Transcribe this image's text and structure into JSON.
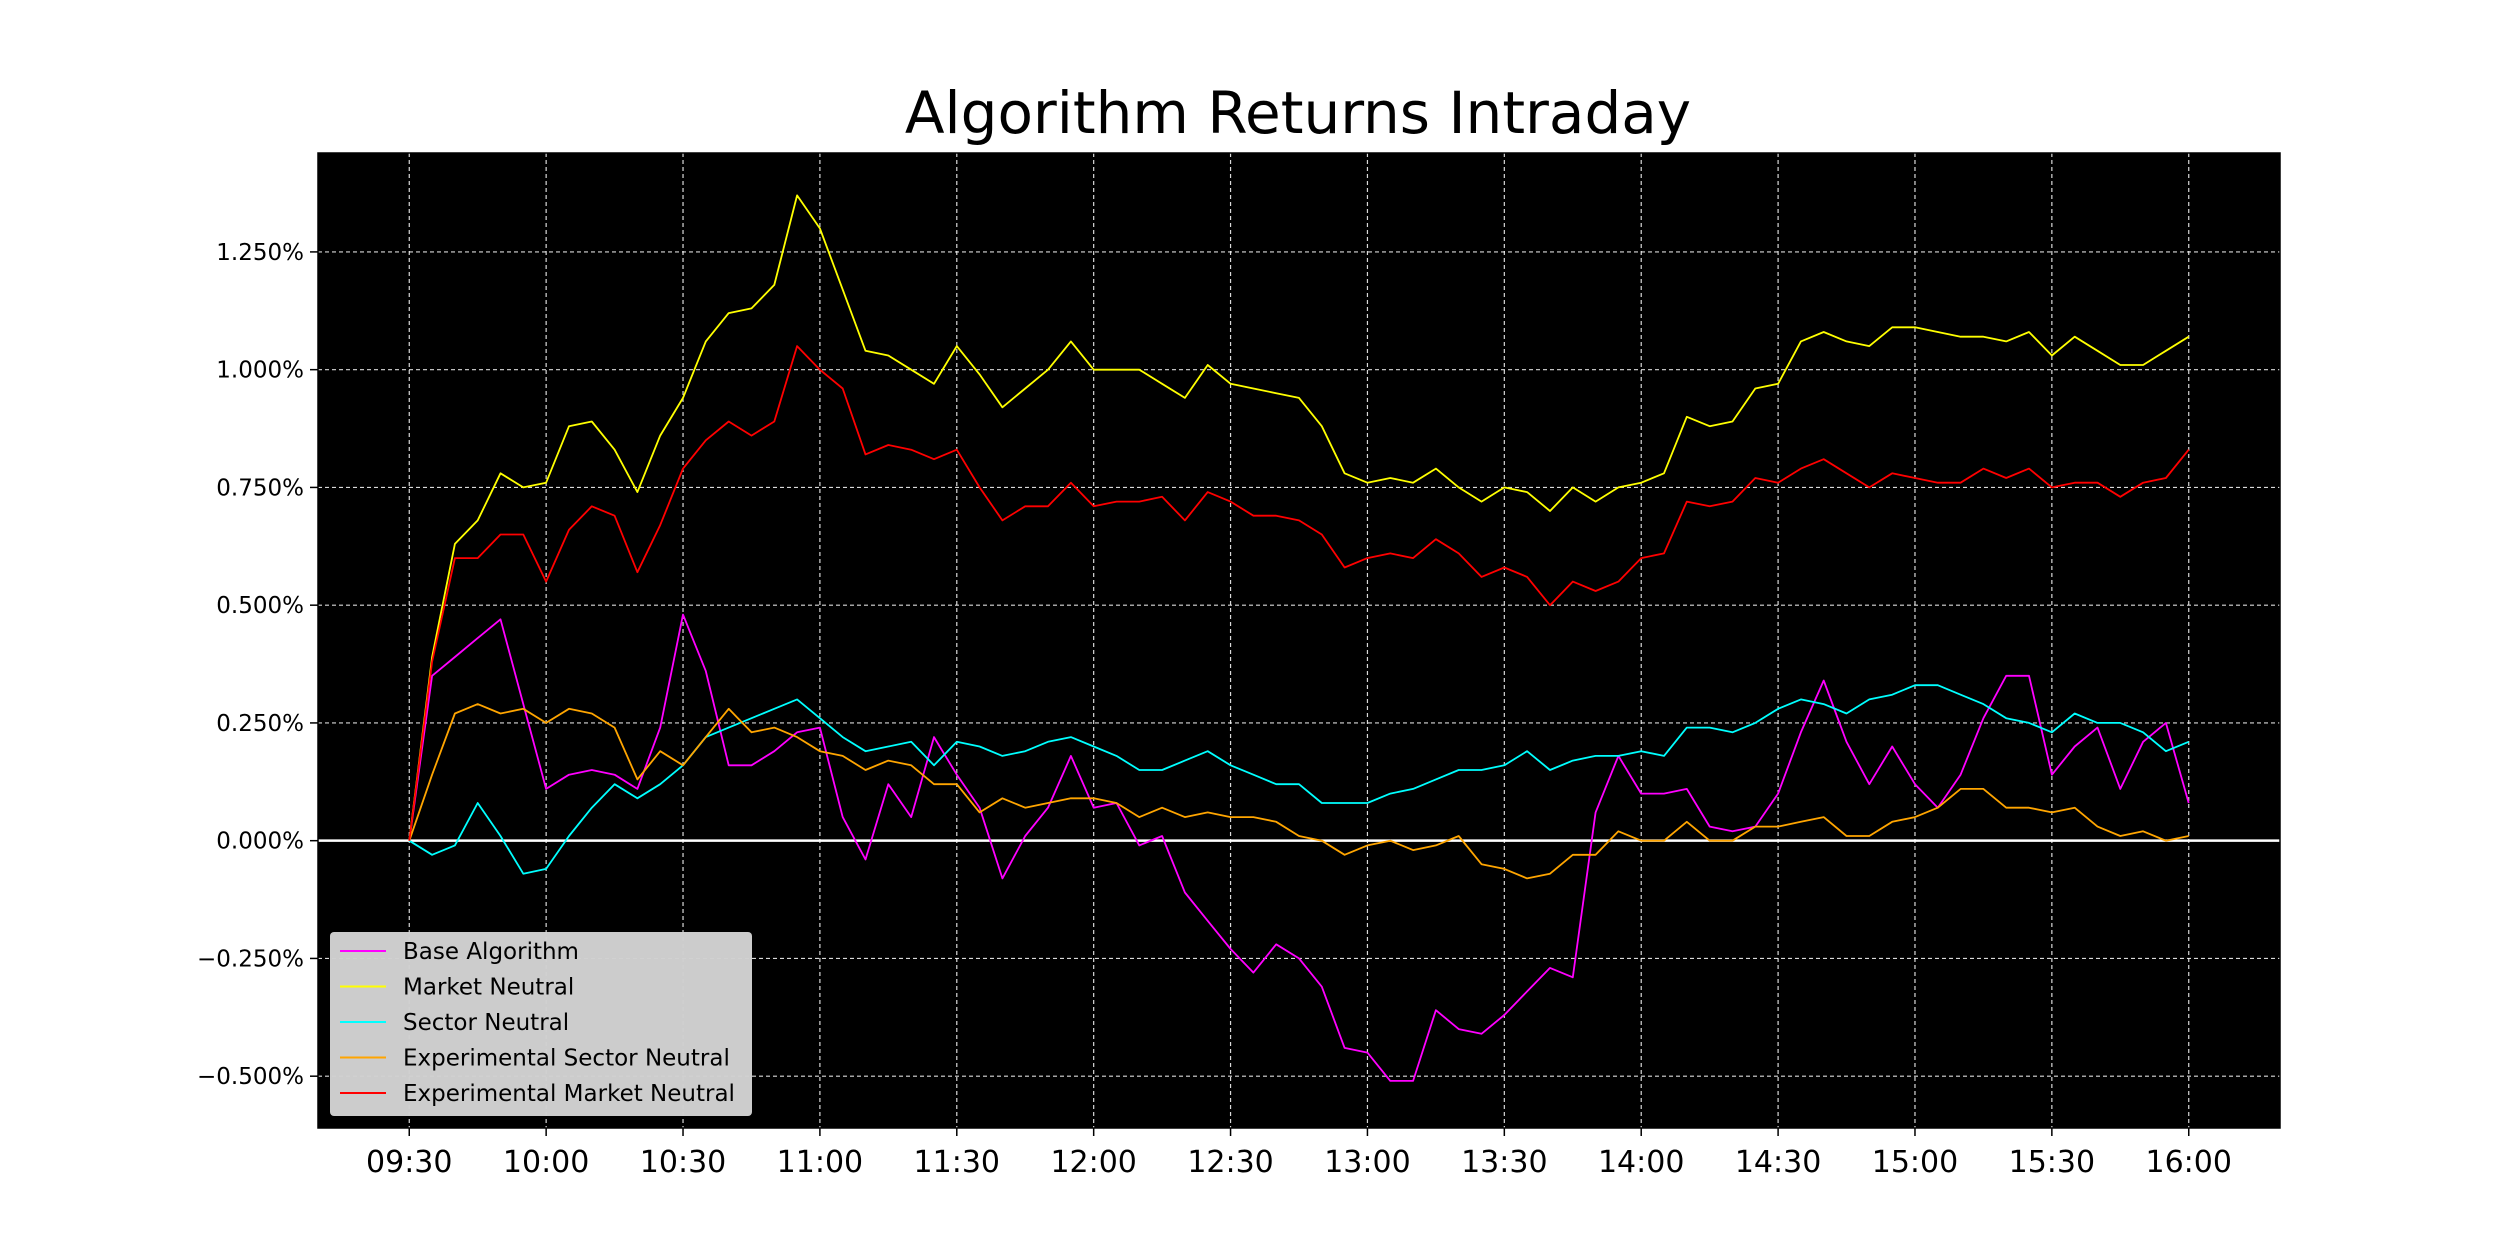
{
  "chart_data": {
    "type": "line",
    "title": "Algorithm Returns Intraday",
    "xlabel": "",
    "ylabel": "",
    "x_ticks": [
      "09:30",
      "10:00",
      "10:30",
      "11:00",
      "11:30",
      "12:00",
      "12:30",
      "13:00",
      "13:30",
      "14:00",
      "14:30",
      "15:00",
      "15:30",
      "16:00"
    ],
    "x_range_minutes": [
      -20,
      410
    ],
    "x_step_minutes": 5,
    "y_ticks": [
      {
        "value": -0.5,
        "label": "−0.500%"
      },
      {
        "value": -0.25,
        "label": "−0.250%"
      },
      {
        "value": 0.0,
        "label": "0.000%"
      },
      {
        "value": 0.25,
        "label": "0.250%"
      },
      {
        "value": 0.5,
        "label": "0.500%"
      },
      {
        "value": 0.75,
        "label": "0.750%"
      },
      {
        "value": 1.0,
        "label": "1.000%"
      },
      {
        "value": 1.25,
        "label": "1.250%"
      }
    ],
    "ylim": [
      -0.61,
      1.46
    ],
    "grid": true,
    "grid_color": "#ffffff",
    "plot_background": "#000000",
    "zero_line_color": "#ffffff",
    "legend_position": "lower-left",
    "series": [
      {
        "name": "Base Algorithm",
        "color": "#ff00ff",
        "values": [
          0.0,
          0.35,
          0.39,
          0.43,
          0.47,
          0.29,
          0.11,
          0.14,
          0.15,
          0.14,
          0.11,
          0.24,
          0.48,
          0.36,
          0.16,
          0.16,
          0.19,
          0.23,
          0.24,
          0.05,
          -0.04,
          0.12,
          0.05,
          0.22,
          0.14,
          0.07,
          -0.08,
          0.01,
          0.07,
          0.18,
          0.07,
          0.08,
          -0.01,
          0.01,
          -0.11,
          -0.17,
          -0.23,
          -0.28,
          -0.22,
          -0.25,
          -0.31,
          -0.44,
          -0.45,
          -0.51,
          -0.51,
          -0.36,
          -0.4,
          -0.41,
          -0.37,
          -0.32,
          -0.27,
          -0.29,
          0.06,
          0.18,
          0.1,
          0.1,
          0.11,
          0.03,
          0.02,
          0.03,
          0.1,
          0.23,
          0.34,
          0.21,
          0.12,
          0.2,
          0.12,
          0.07,
          0.14,
          0.26,
          0.35,
          0.35,
          0.14,
          0.2,
          0.24,
          0.11,
          0.21,
          0.25,
          0.08
        ]
      },
      {
        "name": "Market Neutral",
        "color": "#ffff00",
        "values": [
          0.0,
          0.39,
          0.63,
          0.68,
          0.78,
          0.75,
          0.76,
          0.88,
          0.89,
          0.83,
          0.74,
          0.86,
          0.94,
          1.06,
          1.12,
          1.13,
          1.18,
          1.37,
          1.3,
          1.17,
          1.04,
          1.03,
          1.0,
          0.97,
          1.05,
          0.99,
          0.92,
          0.96,
          1.0,
          1.06,
          1.0,
          1.0,
          1.0,
          0.97,
          0.94,
          1.01,
          0.97,
          0.96,
          0.95,
          0.94,
          0.88,
          0.78,
          0.76,
          0.77,
          0.76,
          0.79,
          0.75,
          0.72,
          0.75,
          0.74,
          0.7,
          0.75,
          0.72,
          0.75,
          0.76,
          0.78,
          0.9,
          0.88,
          0.89,
          0.96,
          0.97,
          1.06,
          1.08,
          1.06,
          1.05,
          1.09,
          1.09,
          1.08,
          1.07,
          1.07,
          1.06,
          1.08,
          1.03,
          1.07,
          1.04,
          1.01,
          1.01,
          1.04,
          1.07
        ]
      },
      {
        "name": "Sector Neutral",
        "color": "#00ffff",
        "values": [
          0.0,
          -0.03,
          -0.01,
          0.08,
          0.01,
          -0.07,
          -0.06,
          0.01,
          0.07,
          0.12,
          0.09,
          0.12,
          0.16,
          0.22,
          0.24,
          0.26,
          0.28,
          0.3,
          0.26,
          0.22,
          0.19,
          0.2,
          0.21,
          0.16,
          0.21,
          0.2,
          0.18,
          0.19,
          0.21,
          0.22,
          0.2,
          0.18,
          0.15,
          0.15,
          0.17,
          0.19,
          0.16,
          0.14,
          0.12,
          0.12,
          0.08,
          0.08,
          0.08,
          0.1,
          0.11,
          0.13,
          0.15,
          0.15,
          0.16,
          0.19,
          0.15,
          0.17,
          0.18,
          0.18,
          0.19,
          0.18,
          0.24,
          0.24,
          0.23,
          0.25,
          0.28,
          0.3,
          0.29,
          0.27,
          0.3,
          0.31,
          0.33,
          0.33,
          0.31,
          0.29,
          0.26,
          0.25,
          0.23,
          0.27,
          0.25,
          0.25,
          0.23,
          0.19,
          0.21
        ]
      },
      {
        "name": "Experimental Sector Neutral",
        "color": "#ffa500",
        "values": [
          0.0,
          0.14,
          0.27,
          0.29,
          0.27,
          0.28,
          0.25,
          0.28,
          0.27,
          0.24,
          0.13,
          0.19,
          0.16,
          0.22,
          0.28,
          0.23,
          0.24,
          0.22,
          0.19,
          0.18,
          0.15,
          0.17,
          0.16,
          0.12,
          0.12,
          0.06,
          0.09,
          0.07,
          0.08,
          0.09,
          0.09,
          0.08,
          0.05,
          0.07,
          0.05,
          0.06,
          0.05,
          0.05,
          0.04,
          0.01,
          0.0,
          -0.03,
          -0.01,
          0.0,
          -0.02,
          -0.01,
          0.01,
          -0.05,
          -0.06,
          -0.08,
          -0.07,
          -0.03,
          -0.03,
          0.02,
          0.0,
          0.0,
          0.04,
          0.0,
          0.0,
          0.03,
          0.03,
          0.04,
          0.05,
          0.01,
          0.01,
          0.04,
          0.05,
          0.07,
          0.11,
          0.11,
          0.07,
          0.07,
          0.06,
          0.07,
          0.03,
          0.01,
          0.02,
          0.0,
          0.01
        ]
      },
      {
        "name": "Experimental Market Neutral",
        "color": "#ff0000",
        "values": [
          0.0,
          0.38,
          0.6,
          0.6,
          0.65,
          0.65,
          0.55,
          0.66,
          0.71,
          0.69,
          0.57,
          0.67,
          0.79,
          0.85,
          0.89,
          0.86,
          0.89,
          1.05,
          1.0,
          0.96,
          0.82,
          0.84,
          0.83,
          0.81,
          0.83,
          0.75,
          0.68,
          0.71,
          0.71,
          0.76,
          0.71,
          0.72,
          0.72,
          0.73,
          0.68,
          0.74,
          0.72,
          0.69,
          0.69,
          0.68,
          0.65,
          0.58,
          0.6,
          0.61,
          0.6,
          0.64,
          0.61,
          0.56,
          0.58,
          0.56,
          0.5,
          0.55,
          0.53,
          0.55,
          0.6,
          0.61,
          0.72,
          0.71,
          0.72,
          0.77,
          0.76,
          0.79,
          0.81,
          0.78,
          0.75,
          0.78,
          0.77,
          0.76,
          0.76,
          0.79,
          0.77,
          0.79,
          0.75,
          0.76,
          0.76,
          0.73,
          0.76,
          0.77,
          0.83
        ]
      }
    ]
  }
}
